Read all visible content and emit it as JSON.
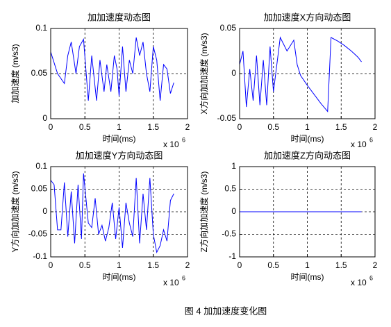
{
  "chart_data": [
    {
      "type": "line",
      "title": "加加速度动态图",
      "xlabel": "时间(ms)",
      "ylabel": "加加速度 (m/s3)",
      "x_scale_label": "x 10",
      "x_scale_exponent": "6",
      "xlim": [
        0,
        2
      ],
      "xticks": [
        0,
        0.5,
        1,
        1.5,
        2
      ],
      "ylim": [
        0,
        0.1
      ],
      "yticks": [
        0,
        0.05,
        0.1
      ],
      "grid": true,
      "color": "#0000ff",
      "x": [
        0,
        0.1,
        0.2,
        0.25,
        0.3,
        0.37,
        0.42,
        0.48,
        0.55,
        0.6,
        0.67,
        0.72,
        0.78,
        0.82,
        0.88,
        0.93,
        0.97,
        1.0,
        1.05,
        1.1,
        1.15,
        1.2,
        1.25,
        1.3,
        1.35,
        1.4,
        1.45,
        1.5,
        1.55,
        1.6,
        1.65,
        1.7,
        1.75,
        1.8
      ],
      "values": [
        0.074,
        0.05,
        0.039,
        0.07,
        0.085,
        0.05,
        0.08,
        0.088,
        0.02,
        0.07,
        0.02,
        0.065,
        0.03,
        0.06,
        0.03,
        0.07,
        0.055,
        0.025,
        0.08,
        0.03,
        0.065,
        0.05,
        0.09,
        0.07,
        0.085,
        0.05,
        0.03,
        0.08,
        0.065,
        0.02,
        0.06,
        0.055,
        0.028,
        0.04
      ]
    },
    {
      "type": "line",
      "title": "加加速度X方向动态图",
      "xlabel": "时间(ms)",
      "ylabel": "X方向加加速度 (m/s3)",
      "x_scale_label": "x 10",
      "x_scale_exponent": "6",
      "xlim": [
        0,
        2
      ],
      "xticks": [
        0,
        0.5,
        1,
        1.5,
        2
      ],
      "ylim": [
        -0.05,
        0.05
      ],
      "yticks": [
        -0.05,
        0,
        0.05
      ],
      "grid": true,
      "color": "#0000ff",
      "x": [
        0,
        0.05,
        0.1,
        0.15,
        0.2,
        0.25,
        0.3,
        0.35,
        0.4,
        0.45,
        0.5,
        0.55,
        0.6,
        0.7,
        0.8,
        0.85,
        0.9,
        1.0,
        1.1,
        1.2,
        1.3,
        1.35,
        1.45,
        1.55,
        1.65,
        1.75,
        1.8
      ],
      "values": [
        0.01,
        0.025,
        -0.037,
        0.005,
        -0.03,
        0.02,
        -0.035,
        0.015,
        -0.035,
        0.03,
        -0.02,
        0.01,
        0.04,
        0.025,
        0.037,
        0.01,
        -0.002,
        -0.013,
        -0.023,
        -0.033,
        -0.042,
        0.04,
        0.036,
        0.031,
        0.025,
        0.018,
        0.013
      ]
    },
    {
      "type": "line",
      "title": "加加速度Y方向动态图",
      "xlabel": "时间(ms)",
      "ylabel": "Y方向加加速度 (m/s3)",
      "x_scale_label": "x 10",
      "x_scale_exponent": "6",
      "xlim": [
        0,
        2
      ],
      "xticks": [
        0,
        0.5,
        1,
        1.5,
        2
      ],
      "ylim": [
        -0.1,
        0.1
      ],
      "yticks": [
        -0.1,
        -0.05,
        0,
        0.05,
        0.1
      ],
      "grid": true,
      "color": "#0000ff",
      "x": [
        0,
        0.05,
        0.1,
        0.15,
        0.2,
        0.25,
        0.3,
        0.35,
        0.4,
        0.45,
        0.48,
        0.55,
        0.6,
        0.65,
        0.7,
        0.75,
        0.8,
        0.85,
        0.9,
        0.95,
        1.0,
        1.05,
        1.1,
        1.15,
        1.2,
        1.25,
        1.3,
        1.35,
        1.4,
        1.45,
        1.5,
        1.55,
        1.6,
        1.65,
        1.7,
        1.75,
        1.8
      ],
      "values": [
        0.07,
        0.06,
        -0.04,
        -0.04,
        0.065,
        -0.055,
        0.045,
        -0.07,
        0.06,
        -0.06,
        0.085,
        -0.025,
        -0.035,
        0.03,
        -0.05,
        -0.03,
        -0.065,
        -0.035,
        0.02,
        -0.06,
        0.01,
        -0.08,
        0.02,
        -0.025,
        -0.055,
        0.075,
        -0.07,
        0.04,
        -0.04,
        0.075,
        -0.05,
        -0.09,
        -0.075,
        -0.04,
        -0.065,
        0.025,
        0.04
      ]
    },
    {
      "type": "line",
      "title": "加加速度Z方向动态图",
      "xlabel": "时间(ms)",
      "ylabel": "Z方向加加速度 (m/s3)",
      "x_scale_label": "x 10",
      "x_scale_exponent": "6",
      "xlim": [
        0,
        2
      ],
      "xticks": [
        0,
        0.5,
        1,
        1.5,
        2
      ],
      "ylim": [
        -1,
        1
      ],
      "yticks": [
        -1,
        -0.5,
        0,
        0.5,
        1
      ],
      "grid": true,
      "color": "#0000ff",
      "x": [
        0,
        0.9,
        1.8
      ],
      "values": [
        0,
        0,
        0
      ]
    }
  ],
  "caption": "图 4  加加速度变化图"
}
